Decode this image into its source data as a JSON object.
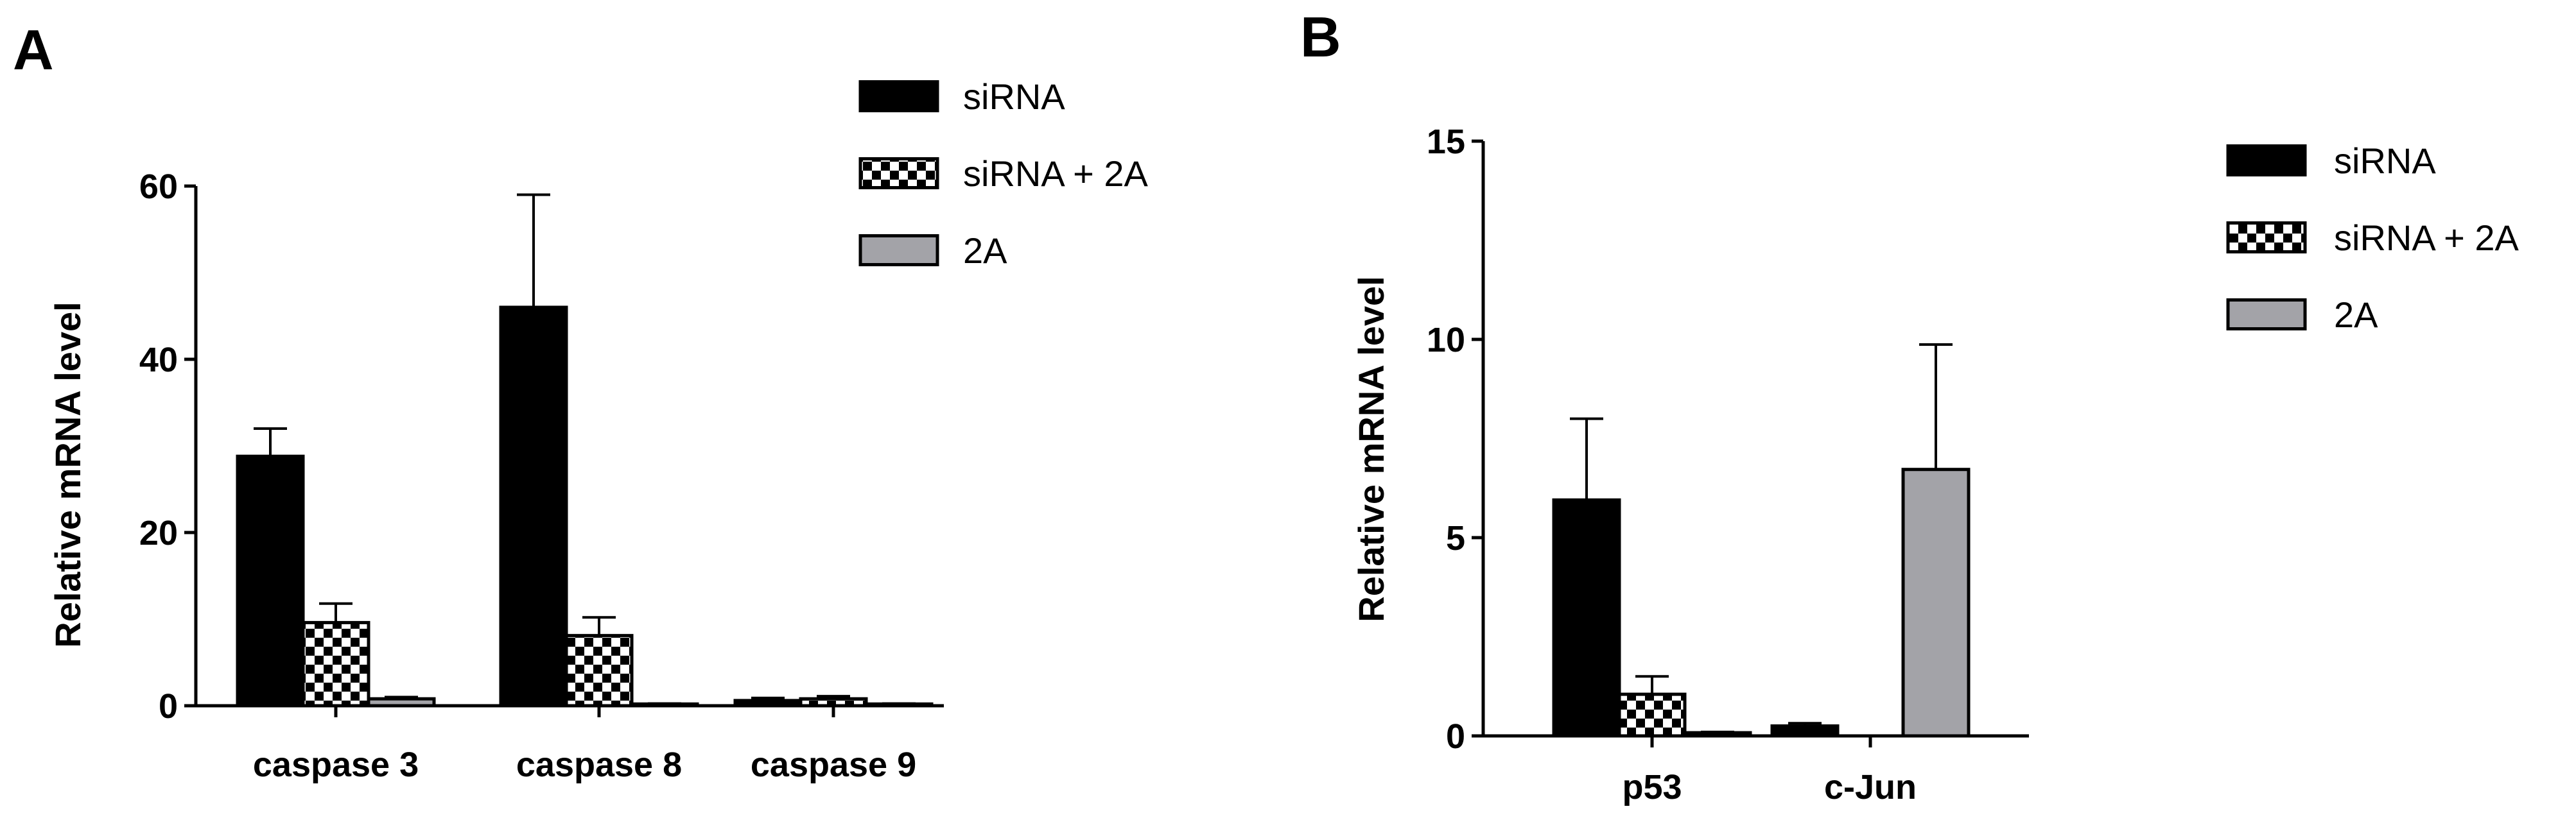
{
  "colors": {
    "siRNA": "#000000",
    "2A": "#a3a3a8",
    "checker": "#000000"
  },
  "chart_data": [
    {
      "panel": "A",
      "type": "bar",
      "ylabel": "Relative mRNA level",
      "xlabel": "",
      "ylim": [
        0,
        60
      ],
      "yticks": [
        0,
        20,
        40,
        60
      ],
      "categories": [
        "caspase 3",
        "caspase 8",
        "caspase 9"
      ],
      "series": [
        {
          "name": "siRNA",
          "pattern": "solid-black",
          "values": [
            28.8,
            46.0,
            0.6
          ],
          "errors": [
            3.2,
            13.0,
            0.3
          ]
        },
        {
          "name": "siRNA + 2A",
          "pattern": "checker",
          "values": [
            9.6,
            8.1,
            0.8
          ],
          "errors": [
            2.2,
            2.1,
            0.3
          ]
        },
        {
          "name": "2A",
          "pattern": "solid-gray",
          "values": [
            0.8,
            0.2,
            0.2
          ],
          "errors": [
            0.2,
            0.05,
            0.05
          ]
        }
      ],
      "legend": "top-right"
    },
    {
      "panel": "B",
      "type": "bar",
      "ylabel": "Relative mRNA level",
      "xlabel": "",
      "ylim": [
        0,
        15
      ],
      "yticks": [
        0,
        5,
        10,
        15
      ],
      "categories": [
        "p53",
        "c-Jun"
      ],
      "series": [
        {
          "name": "siRNA",
          "pattern": "solid-black",
          "values": [
            5.95,
            0.25
          ],
          "errors": [
            2.05,
            0.07
          ]
        },
        {
          "name": "siRNA + 2A",
          "pattern": "checker",
          "values": [
            1.05,
            0.0
          ],
          "errors": [
            0.45,
            0.0
          ]
        },
        {
          "name": "2A",
          "pattern": "solid-gray",
          "values": [
            0.08,
            6.72
          ],
          "errors": [
            0.02,
            3.15
          ]
        }
      ],
      "legend": "right"
    }
  ]
}
